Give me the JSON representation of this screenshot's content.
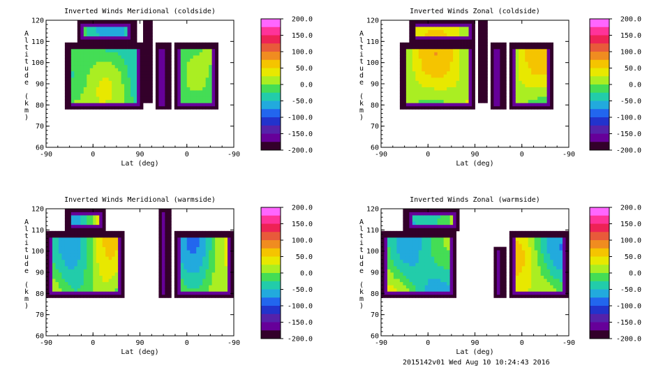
{
  "footer": "2015142v01 Wed Aug 10 10:24:43 2016",
  "colorbar": {
    "labels": [
      "200.0",
      "150.0",
      "100.0",
      "50.0",
      "0.0",
      "-50.0",
      "-100.0",
      "-150.0",
      "-200.0"
    ],
    "range": [
      -200,
      200
    ],
    "colors": [
      "#ff66ff",
      "#ff3399",
      "#ee2255",
      "#e85a3a",
      "#f08c20",
      "#f5c400",
      "#e8e800",
      "#aaee22",
      "#44dd55",
      "#22ccaa",
      "#22aadd",
      "#2266ee",
      "#2233cc",
      "#5522aa",
      "#660099",
      "#33002a"
    ]
  },
  "chart_data": [
    {
      "type": "heatmap",
      "title": "Inverted Winds Meridional (coldside)",
      "xlabel": "Lat (deg)",
      "ylabel": "Altitude (km)",
      "xticks": [
        "-90",
        "0",
        "90",
        "0",
        "-90"
      ],
      "yticks": [
        "60",
        "70",
        "80",
        "90",
        "100",
        "110",
        "120"
      ],
      "ylim": [
        60,
        120
      ],
      "colorbar_range": [
        -200,
        200
      ]
    },
    {
      "type": "heatmap",
      "title": "Inverted Winds Zonal (coldside)",
      "xlabel": "Lat (deg)",
      "ylabel": "Altitude (km)",
      "xticks": [
        "-90",
        "0",
        "90",
        "0",
        "-90"
      ],
      "yticks": [
        "60",
        "70",
        "80",
        "90",
        "100",
        "110",
        "120"
      ],
      "ylim": [
        60,
        120
      ],
      "colorbar_range": [
        -200,
        200
      ]
    },
    {
      "type": "heatmap",
      "title": "Inverted Winds Meridional (warmside)",
      "xlabel": "Lat (deg)",
      "ylabel": "Altitude (km)",
      "xticks": [
        "-90",
        "0",
        "90",
        "0",
        "-90"
      ],
      "yticks": [
        "60",
        "70",
        "80",
        "90",
        "100",
        "110",
        "120"
      ],
      "ylim": [
        60,
        120
      ],
      "colorbar_range": [
        -200,
        200
      ]
    },
    {
      "type": "heatmap",
      "title": "Inverted Winds Zonal (warmside)",
      "xlabel": "Lat (deg)",
      "ylabel": "Altitude (km)",
      "xticks": [
        "-90",
        "0",
        "90",
        "0",
        "-90"
      ],
      "yticks": [
        "60",
        "70",
        "80",
        "90",
        "100",
        "110",
        "120"
      ],
      "ylim": [
        60,
        120
      ],
      "colorbar_range": [
        -200,
        200
      ]
    }
  ]
}
